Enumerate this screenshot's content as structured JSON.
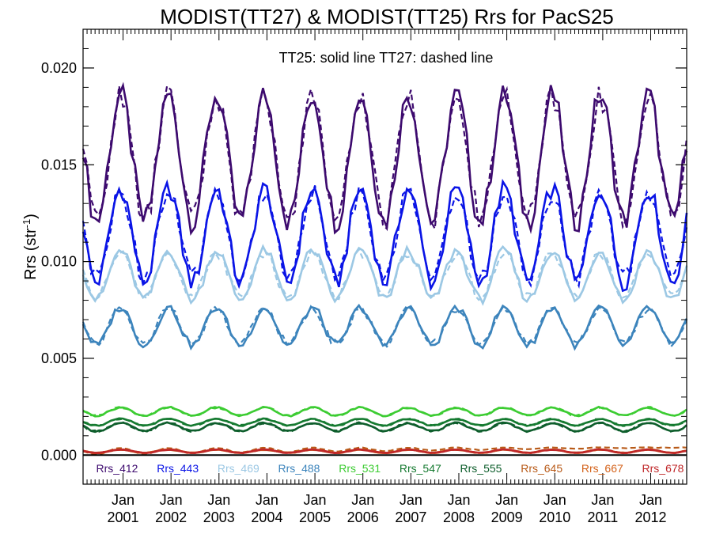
{
  "chart_data": {
    "type": "line",
    "title": "MODIST(TT27) & MODIST(TT25)  Rrs for PacS25",
    "annotation": "TT25: solid line   TT27: dashed line",
    "ylabel_main": "Rrs (str",
    "ylabel_sup": "-1",
    "ylabel_close": ")",
    "xlabel": "",
    "xlim": [
      "2000-03-01",
      "2012-10-01"
    ],
    "ylim": [
      -0.0015,
      0.022
    ],
    "yticks": [
      0.0,
      0.005,
      0.01,
      0.015,
      0.02
    ],
    "ytick_labels": [
      "0.000",
      "0.005",
      "0.010",
      "0.015",
      "0.020"
    ],
    "xticks": [
      "2001-01-01",
      "2002-01-01",
      "2003-01-01",
      "2004-01-01",
      "2005-01-01",
      "2006-01-01",
      "2007-01-01",
      "2008-01-01",
      "2009-01-01",
      "2010-01-01",
      "2011-01-01",
      "2012-01-01"
    ],
    "xtick_labels_top": [
      "Jan",
      "Jan",
      "Jan",
      "Jan",
      "Jan",
      "Jan",
      "Jan",
      "Jan",
      "Jan",
      "Jan",
      "Jan",
      "Jan"
    ],
    "xtick_labels_bottom": [
      "2001",
      "2002",
      "2003",
      "2004",
      "2005",
      "2006",
      "2007",
      "2008",
      "2009",
      "2010",
      "2011",
      "2012"
    ],
    "zero_line": 0.0,
    "grid": false,
    "legend": {
      "placement": "bottom",
      "items": [
        {
          "label": "Rrs_412",
          "color": "#3d0a6e"
        },
        {
          "label": "Rrs_443",
          "color": "#0a14e6"
        },
        {
          "label": "Rrs_469",
          "color": "#9cc8e4"
        },
        {
          "label": "Rrs_488",
          "color": "#3c84bc"
        },
        {
          "label": "Rrs_531",
          "color": "#3ccc32"
        },
        {
          "label": "Rrs_547",
          "color": "#157a30"
        },
        {
          "label": "Rrs_555",
          "color": "#0e5e2c"
        },
        {
          "label": "Rrs_645",
          "color": "#b85a18"
        },
        {
          "label": "Rrs_667",
          "color": "#d4621a"
        },
        {
          "label": "Rrs_678",
          "color": "#c0282a"
        }
      ]
    },
    "series": [
      {
        "band": "412",
        "color": "#3d0a6e",
        "approx_min": 0.0115,
        "approx_max": 0.0192,
        "seasonal_peak": "December",
        "t27_approx_max": 0.019
      },
      {
        "band": "443",
        "color": "#0a14e6",
        "approx_min": 0.0085,
        "approx_max": 0.0142,
        "seasonal_peak": "December",
        "t27_approx_max": 0.0138
      },
      {
        "band": "469",
        "color": "#9cc8e4",
        "approx_min": 0.0078,
        "approx_max": 0.0108,
        "seasonal_peak": "December",
        "t27_approx_max": 0.0105
      },
      {
        "band": "488",
        "color": "#3c84bc",
        "approx_min": 0.0055,
        "approx_max": 0.0078,
        "seasonal_peak": "December",
        "t27_approx_max": 0.0076
      },
      {
        "band": "531",
        "color": "#3ccc32",
        "approx_min": 0.002,
        "approx_max": 0.0025,
        "seasonal_peak": "December",
        "t27_approx_max": 0.0025
      },
      {
        "band": "547",
        "color": "#157a30",
        "approx_min": 0.0015,
        "approx_max": 0.0019,
        "seasonal_peak": "December",
        "t27_approx_max": 0.0019
      },
      {
        "band": "555",
        "color": "#0e5e2c",
        "approx_min": 0.0012,
        "approx_max": 0.0017,
        "seasonal_peak": "December",
        "t27_approx_max": 0.0017
      },
      {
        "band": "645",
        "color": "#b85a18",
        "approx_min": 0.0001,
        "approx_max": 0.0003,
        "seasonal_peak": "December",
        "t27_approx_max": 0.0005
      },
      {
        "band": "667",
        "color": "#d4621a",
        "approx_min": 0.0001,
        "approx_max": 0.0003,
        "seasonal_peak": "December",
        "t27_approx_max": 0.0003
      },
      {
        "band": "678",
        "color": "#c0282a",
        "approx_min": 0.0001,
        "approx_max": 0.0003,
        "seasonal_peak": "December",
        "t27_approx_max": 0.0003
      }
    ]
  }
}
